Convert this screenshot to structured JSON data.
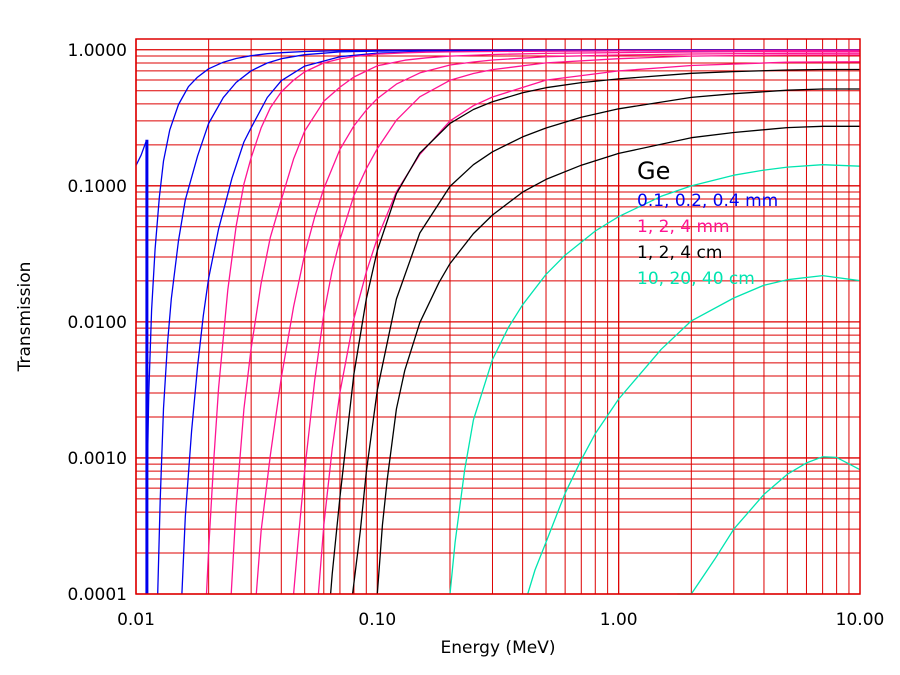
{
  "chart_data": {
    "type": "line",
    "title": "",
    "xlabel": "Energy (MeV)",
    "ylabel": "Transmission",
    "x_scale": "log",
    "y_scale": "log",
    "xlim": [
      0.01,
      10
    ],
    "ylim": [
      0.0001,
      1.2
    ],
    "x_ticks": [
      {
        "value": 0.01,
        "label": "0.01"
      },
      {
        "value": 0.1,
        "label": "0.10"
      },
      {
        "value": 1,
        "label": "1.00"
      },
      {
        "value": 10,
        "label": "10.00"
      }
    ],
    "y_ticks": [
      {
        "value": 0.0001,
        "label": "0.0001"
      },
      {
        "value": 0.001,
        "label": "0.0010"
      },
      {
        "value": 0.01,
        "label": "0.0100"
      },
      {
        "value": 0.1,
        "label": "0.1000"
      },
      {
        "value": 1,
        "label": "1.0000"
      }
    ],
    "grid": true,
    "grid_color": "#dd0000",
    "legend": {
      "placement": "right",
      "title": "Ge",
      "entries": [
        {
          "label": "0.1, 0.2, 0.4 mm",
          "color": "#0000ee"
        },
        {
          "label": "1, 2, 4 mm",
          "color": "#ff1493"
        },
        {
          "label": "1, 2, 4 cm",
          "color": "#000000"
        },
        {
          "label": "10, 20, 40 cm",
          "color": "#00e5b0"
        }
      ]
    },
    "series": [
      {
        "group": 0,
        "color": "#0000ee",
        "x": [
          0.0111,
          0.0113,
          0.0116,
          0.012,
          0.0125,
          0.013,
          0.0138,
          0.015,
          0.0165,
          0.018,
          0.02,
          0.023,
          0.026,
          0.03,
          0.035,
          0.04,
          0.05,
          0.07,
          0.1,
          0.15,
          0.2,
          0.3,
          0.5,
          1,
          2,
          5,
          10
        ],
        "y": [
          0.00052,
          0.00306,
          0.01223,
          0.0344,
          0.0832,
          0.1521,
          0.258,
          0.396,
          0.536,
          0.63,
          0.725,
          0.81,
          0.862,
          0.905,
          0.935,
          0.952,
          0.972,
          0.985,
          0.99,
          0.993,
          0.994,
          0.995,
          0.996,
          0.997,
          0.998,
          0.998,
          0.998
        ]
      },
      {
        "group": 0,
        "color": "#0000ee",
        "x": [
          0.0123,
          0.0126,
          0.013,
          0.0135,
          0.014,
          0.015,
          0.016,
          0.018,
          0.02,
          0.023,
          0.026,
          0.03,
          0.035,
          0.04,
          0.05,
          0.07,
          0.1,
          0.15,
          0.2,
          0.3,
          0.5,
          1,
          2,
          5,
          10
        ],
        "y": [
          0.0001,
          0.00049,
          0.00231,
          0.00692,
          0.01476,
          0.03959,
          0.0788,
          0.166,
          0.287,
          0.445,
          0.575,
          0.7,
          0.8,
          0.86,
          0.92,
          0.965,
          0.978,
          0.985,
          0.988,
          0.99,
          0.991,
          0.993,
          0.995,
          0.996,
          0.996
        ]
      },
      {
        "group": 0,
        "color": "#0000ee",
        "x": [
          0.0155,
          0.016,
          0.017,
          0.018,
          0.019,
          0.02,
          0.022,
          0.025,
          0.028,
          0.03,
          0.035,
          0.04,
          0.05,
          0.07,
          0.1,
          0.15,
          0.2,
          0.3,
          0.5,
          1,
          2,
          5,
          10
        ],
        "y": [
          0.0001,
          0.00037,
          0.00158,
          0.00472,
          0.0111,
          0.02084,
          0.04825,
          0.1139,
          0.21,
          0.267,
          0.446,
          0.593,
          0.759,
          0.89,
          0.945,
          0.965,
          0.972,
          0.976,
          0.979,
          0.982,
          0.985,
          0.987,
          0.987
        ]
      },
      {
        "group": 0,
        "color": "#0000ee",
        "x": [
          0.0111,
          0.0111
        ],
        "y": [
          0.0001,
          0.218
        ]
      },
      {
        "group": 0,
        "color": "#0000ee",
        "x": [
          0.01,
          0.0105,
          0.011
        ],
        "y": [
          0.141,
          0.168,
          0.211
        ]
      },
      {
        "group": 1,
        "color": "#ff1493",
        "x": [
          0.0196,
          0.02,
          0.021,
          0.022,
          0.024,
          0.026,
          0.028,
          0.03,
          0.033,
          0.036,
          0.04,
          0.045,
          0.05,
          0.06,
          0.07,
          0.08,
          0.1,
          0.13,
          0.16,
          0.2,
          0.3,
          0.5,
          1,
          2,
          5,
          10
        ],
        "y": [
          0.0001,
          0.00021,
          0.00097,
          0.00327,
          0.01719,
          0.05036,
          0.1029,
          0.1607,
          0.2665,
          0.3743,
          0.4898,
          0.5981,
          0.6872,
          0.8012,
          0.8575,
          0.8918,
          0.9289,
          0.9503,
          0.9595,
          0.9651,
          0.9714,
          0.9769,
          0.9828,
          0.9873,
          0.991,
          0.992
        ]
      },
      {
        "group": 1,
        "color": "#ff1493",
        "x": [
          0.0248,
          0.026,
          0.028,
          0.03,
          0.033,
          0.036,
          0.04,
          0.045,
          0.05,
          0.06,
          0.07,
          0.08,
          0.1,
          0.13,
          0.16,
          0.2,
          0.3,
          0.5,
          1,
          2,
          5,
          10
        ],
        "y": [
          0.0001,
          0.00044,
          0.00228,
          0.00637,
          0.01918,
          0.04176,
          0.07889,
          0.1578,
          0.2528,
          0.4181,
          0.5317,
          0.6308,
          0.7624,
          0.8377,
          0.8729,
          0.8985,
          0.9228,
          0.9409,
          0.9536,
          0.9628,
          0.9707,
          0.972
        ]
      },
      {
        "group": 1,
        "color": "#ff1493",
        "x": [
          0.0315,
          0.033,
          0.036,
          0.04,
          0.045,
          0.05,
          0.055,
          0.06,
          0.07,
          0.08,
          0.09,
          0.1,
          0.12,
          0.15,
          0.2,
          0.25,
          0.3,
          0.5,
          1,
          2,
          5,
          10
        ],
        "y": [
          0.0001,
          0.00029,
          0.00104,
          0.00389,
          0.01296,
          0.03147,
          0.05907,
          0.09546,
          0.1857,
          0.2755,
          0.36,
          0.4374,
          0.5596,
          0.6758,
          0.7722,
          0.8137,
          0.8412,
          0.8891,
          0.9146,
          0.9314,
          0.9424,
          0.9433
        ]
      },
      {
        "group": 1,
        "color": "#ff1493",
        "x": [
          0.045,
          0.047,
          0.05,
          0.055,
          0.06,
          0.065,
          0.07,
          0.08,
          0.09,
          0.1,
          0.12,
          0.15,
          0.2,
          0.25,
          0.3,
          0.5,
          1,
          2,
          5,
          10
        ],
        "y": [
          0.0001,
          0.00025,
          0.00081,
          0.00372,
          0.01146,
          0.02386,
          0.04038,
          0.08474,
          0.1337,
          0.1876,
          0.3034,
          0.4515,
          0.5966,
          0.6697,
          0.7153,
          0.8012,
          0.8602,
          0.8984,
          0.9153,
          0.9169
        ]
      },
      {
        "group": 1,
        "color": "#ff1493",
        "x": [
          0.057,
          0.06,
          0.065,
          0.07,
          0.08,
          0.09,
          0.1,
          0.12,
          0.15,
          0.2,
          0.25,
          0.3,
          0.5,
          1,
          2,
          5,
          10
        ],
        "y": [
          0.0001,
          0.00032,
          0.00117,
          0.00305,
          0.01055,
          0.02323,
          0.04125,
          0.09031,
          0.1698,
          0.3001,
          0.3879,
          0.4499,
          0.5981,
          0.6993,
          0.7663,
          0.8108,
          0.8158
        ]
      },
      {
        "group": 2,
        "color": "#000000",
        "x": [
          0.064,
          0.065,
          0.07,
          0.08,
          0.09,
          0.1,
          0.12,
          0.15,
          0.2,
          0.25,
          0.3,
          0.4,
          0.5,
          0.7,
          1,
          2,
          3,
          5,
          7,
          10
        ],
        "y": [
          0.0001,
          0.00014,
          0.00052,
          0.00413,
          0.01473,
          0.03342,
          0.08754,
          0.1741,
          0.2875,
          0.3638,
          0.4151,
          0.4828,
          0.5264,
          0.5734,
          0.6107,
          0.6712,
          0.6917,
          0.7107,
          0.7158,
          0.7159
        ]
      },
      {
        "group": 2,
        "color": "#000000",
        "x": [
          0.079,
          0.08,
          0.085,
          0.09,
          0.1,
          0.12,
          0.15,
          0.2,
          0.25,
          0.3,
          0.4,
          0.5,
          0.7,
          1,
          2,
          3,
          5,
          7,
          10
        ],
        "y": [
          0.0001,
          0.00012,
          0.00029,
          0.00079,
          0.00315,
          0.01473,
          0.04502,
          0.09912,
          0.1429,
          0.1779,
          0.2289,
          0.2661,
          0.3189,
          0.3681,
          0.4466,
          0.4758,
          0.5049,
          0.5148,
          0.5152
        ]
      },
      {
        "group": 2,
        "color": "#000000",
        "x": [
          0.1,
          0.105,
          0.11,
          0.12,
          0.13,
          0.15,
          0.18,
          0.2,
          0.25,
          0.3,
          0.4,
          0.5,
          0.7,
          1,
          2,
          3,
          5,
          7,
          10
        ],
        "y": [
          0.0001,
          0.00032,
          0.0007,
          0.00229,
          0.00441,
          0.00986,
          0.01941,
          0.02681,
          0.04458,
          0.06108,
          0.08986,
          0.1115,
          0.1417,
          0.1732,
          0.2259,
          0.2466,
          0.2679,
          0.2737,
          0.2739
        ]
      },
      {
        "group": 3,
        "color": "#00e5b0",
        "x": [
          0.2,
          0.21,
          0.23,
          0.25,
          0.3,
          0.35,
          0.4,
          0.5,
          0.6,
          0.8,
          1,
          1.5,
          2,
          3,
          4,
          5,
          7,
          10
        ],
        "y": [
          0.0001,
          0.00024,
          0.00081,
          0.0019,
          0.00529,
          0.00916,
          0.01336,
          0.02234,
          0.03093,
          0.04656,
          0.05939,
          0.08379,
          0.09994,
          0.1198,
          0.1306,
          0.1374,
          0.143,
          0.1394
        ]
      },
      {
        "group": 3,
        "color": "#00e5b0",
        "x": [
          0.42,
          0.45,
          0.5,
          0.6,
          0.7,
          0.8,
          1,
          1.5,
          2,
          3,
          4,
          5,
          7,
          10
        ],
        "y": [
          0.0001,
          0.00015,
          0.00024,
          0.00055,
          0.00097,
          0.00151,
          0.00271,
          0.00629,
          0.01017,
          0.01497,
          0.01859,
          0.02042,
          0.02188,
          0.02009
        ]
      },
      {
        "group": 3,
        "color": "#00e5b0",
        "x": [
          1.75,
          2,
          2.5,
          3,
          4,
          5,
          6,
          7,
          8,
          10
        ],
        "y": [
          0.0001,
          0.0001,
          0.00018,
          0.0003,
          0.00054,
          0.00076,
          0.00092,
          0.00102,
          0.00101,
          0.00082
        ]
      }
    ]
  }
}
